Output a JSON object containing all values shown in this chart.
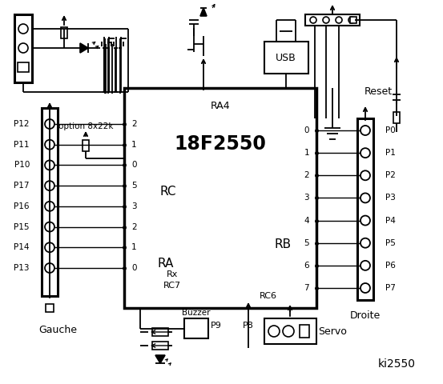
{
  "title": "ki2550",
  "bg_color": "#ffffff",
  "chip_label": "18F2550",
  "ra4_label": "RA4",
  "rc_label": "RC",
  "ra_label": "RA",
  "rb_label": "RB",
  "rc7_label": "RC7",
  "rc6_label": "RC6",
  "rx_label": "Rx",
  "left_pins_P": [
    "P12",
    "P11",
    "P10",
    "P17",
    "P16",
    "P15",
    "P14",
    "P13"
  ],
  "right_pins_P": [
    "P0",
    "P1",
    "P2",
    "P3",
    "P4",
    "P5",
    "P6",
    "P7"
  ],
  "left_rc_nums": [
    "2",
    "1",
    "0"
  ],
  "left_ra_nums": [
    "5",
    "3",
    "2",
    "1",
    "0"
  ],
  "right_rb_nums": [
    "0",
    "1",
    "2",
    "3",
    "4",
    "5",
    "6",
    "7"
  ],
  "gauche_label": "Gauche",
  "droite_label": "Droite",
  "buzzer_label": "Buzzer",
  "p9_label": "P9",
  "p8_label": "P8",
  "servo_label": "Servo",
  "reset_label": "Reset",
  "usb_label": "USB",
  "option_label": "option 8x22k"
}
